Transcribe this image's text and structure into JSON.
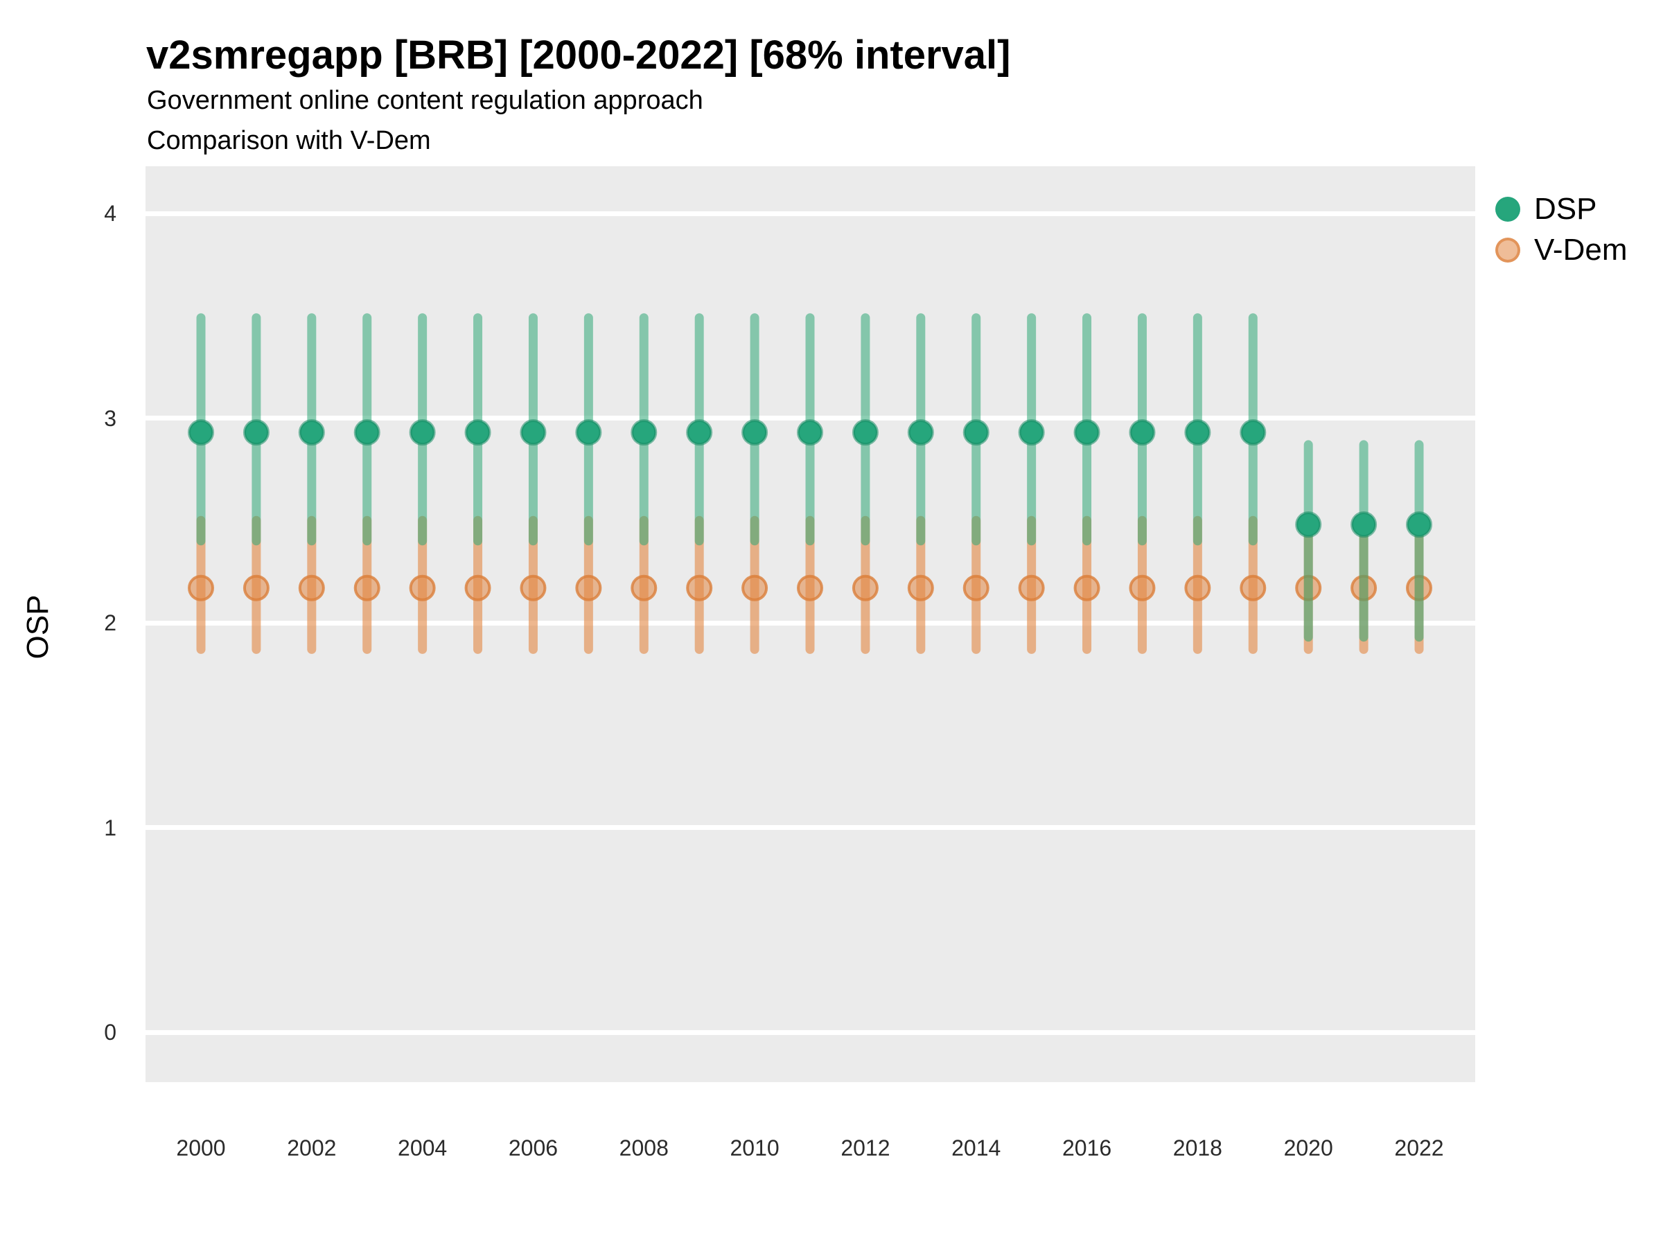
{
  "header": {
    "title": "v2smregapp [BRB] [2000-2022] [68% interval]",
    "subtitle1": "Government online content regulation approach",
    "subtitle2": "Comparison with V-Dem"
  },
  "y_axis": {
    "label": "OSP",
    "tick_labels": [
      "0",
      "1",
      "2",
      "3",
      "4"
    ],
    "tick_values": [
      0,
      1,
      2,
      3,
      4
    ]
  },
  "x_axis": {
    "tick_labels": [
      "2000",
      "2002",
      "2004",
      "2006",
      "2008",
      "2010",
      "2012",
      "2014",
      "2016",
      "2018",
      "2020",
      "2022"
    ]
  },
  "legend": {
    "items": [
      {
        "label": "DSP",
        "color": "#26A67C"
      },
      {
        "label": "V-Dem",
        "color": "#E08743"
      }
    ]
  },
  "colors": {
    "panel_background": "#EBEBEB",
    "gridline": "#FFFFFF",
    "dsp_line": "rgba(47,168,119,0.55)",
    "dsp_dot_fill": "#26A67C",
    "dsp_dot_stroke": "rgba(24,140,100,0.55)",
    "vdem_line": "rgba(226,135,67,0.60)",
    "vdem_dot_fill": "rgba(226,135,67,0.55)",
    "vdem_dot_stroke": "rgba(219,126,57,0.80)",
    "text": "#000000"
  },
  "chart_data": {
    "type": "pointrange",
    "title": "v2smregapp [BRB] [2000-2022] [68% interval]",
    "subtitle": "Government online content regulation approach / Comparison with V-Dem",
    "interval": "68%",
    "xlabel": "",
    "ylabel": "OSP",
    "ylim": [
      -0.25,
      4.25
    ],
    "grid": "major-horizontal-only",
    "legend_position": "right-top",
    "x": [
      2000,
      2001,
      2002,
      2003,
      2004,
      2005,
      2006,
      2007,
      2008,
      2009,
      2010,
      2011,
      2012,
      2013,
      2014,
      2015,
      2016,
      2017,
      2018,
      2019,
      2020,
      2021,
      2022
    ],
    "series": [
      {
        "name": "DSP",
        "estimate": [
          2.93,
          2.93,
          2.93,
          2.93,
          2.93,
          2.93,
          2.93,
          2.93,
          2.93,
          2.93,
          2.93,
          2.93,
          2.93,
          2.93,
          2.93,
          2.93,
          2.93,
          2.93,
          2.93,
          2.93,
          2.48,
          2.48,
          2.48
        ],
        "lower": [
          2.4,
          2.4,
          2.4,
          2.4,
          2.4,
          2.4,
          2.4,
          2.4,
          2.4,
          2.4,
          2.4,
          2.4,
          2.4,
          2.4,
          2.4,
          2.4,
          2.4,
          2.4,
          2.4,
          2.4,
          1.93,
          1.93,
          1.93
        ],
        "upper": [
          3.49,
          3.49,
          3.49,
          3.49,
          3.49,
          3.49,
          3.49,
          3.49,
          3.49,
          3.49,
          3.49,
          3.49,
          3.49,
          3.49,
          3.49,
          3.49,
          3.49,
          3.49,
          3.49,
          3.49,
          2.87,
          2.87,
          2.87
        ]
      },
      {
        "name": "V-Dem",
        "estimate": [
          2.17,
          2.17,
          2.17,
          2.17,
          2.17,
          2.17,
          2.17,
          2.17,
          2.17,
          2.17,
          2.17,
          2.17,
          2.17,
          2.17,
          2.17,
          2.17,
          2.17,
          2.17,
          2.17,
          2.17,
          2.17,
          2.17,
          2.17
        ],
        "lower": [
          1.87,
          1.87,
          1.87,
          1.87,
          1.87,
          1.87,
          1.87,
          1.87,
          1.87,
          1.87,
          1.87,
          1.87,
          1.87,
          1.87,
          1.87,
          1.87,
          1.87,
          1.87,
          1.87,
          1.87,
          1.87,
          1.87,
          1.87
        ],
        "upper": [
          2.5,
          2.5,
          2.5,
          2.5,
          2.5,
          2.5,
          2.5,
          2.5,
          2.5,
          2.5,
          2.5,
          2.5,
          2.5,
          2.5,
          2.5,
          2.5,
          2.5,
          2.5,
          2.5,
          2.5,
          2.5,
          2.5,
          2.5
        ]
      }
    ]
  }
}
